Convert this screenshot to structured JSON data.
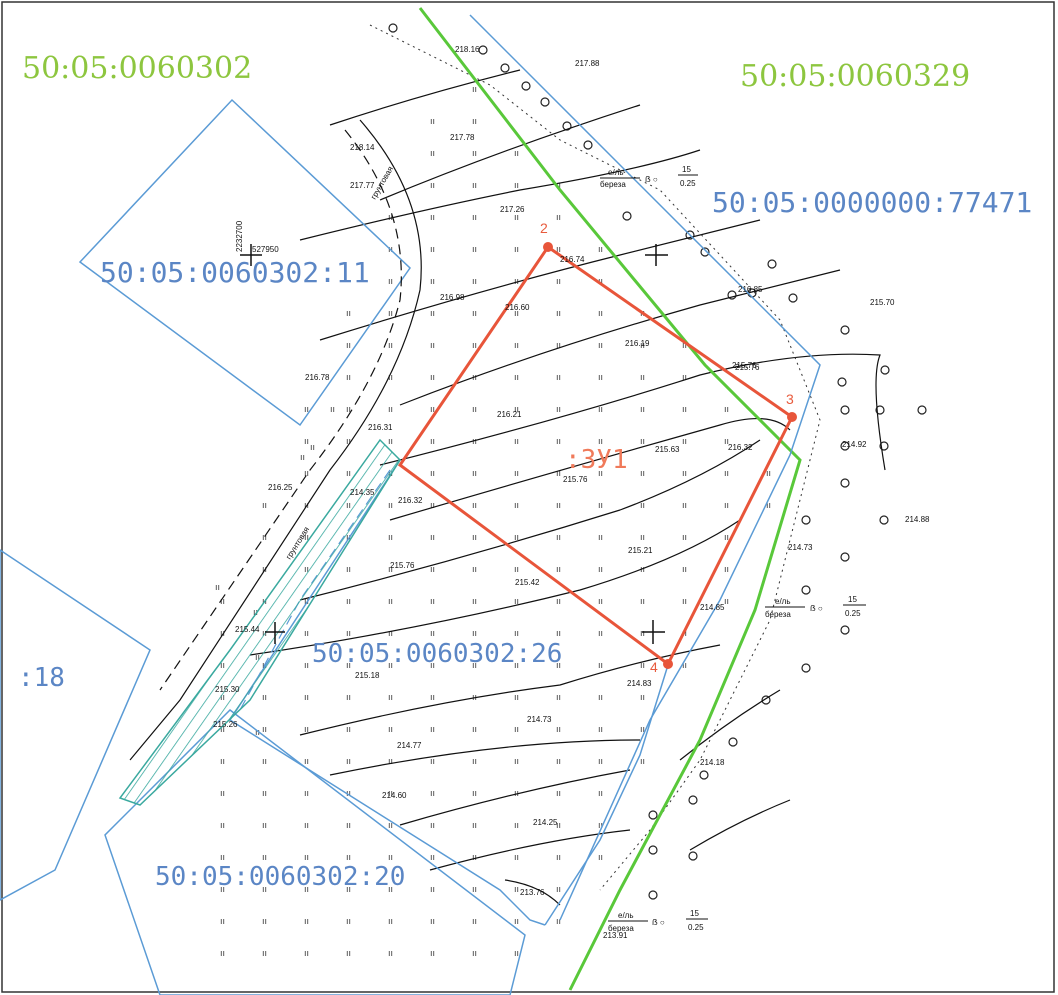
{
  "map": {
    "cadastral_blocks": [
      {
        "id": "block-60302",
        "text": "50:05:0060302"
      },
      {
        "id": "block-60329",
        "text": "50:05:0060329"
      }
    ],
    "parcels": [
      {
        "id": "parcel-77471",
        "text": "50:05:0000000:77471"
      },
      {
        "id": "parcel-11",
        "text": "50:05:0060302:11"
      },
      {
        "id": "parcel-26",
        "text": "50:05:0060302:26"
      },
      {
        "id": "parcel-20",
        "text": "50:05:0060302:20"
      },
      {
        "id": "parcel-18",
        "text": ":18"
      }
    ],
    "new_parcel": {
      "label": ":ЗУ1",
      "points": [
        "2",
        "3",
        "4"
      ]
    },
    "road_labels": [
      "грунтовая",
      "грунтовая"
    ],
    "coordinates": {
      "x": "2232700",
      "y": "527950"
    },
    "tree_notes": [
      {
        "top": "е/ль",
        "species": "береза",
        "num": "15",
        "den": "0.25"
      },
      {
        "top": "е/ль",
        "species": "береза",
        "num": "15",
        "den": "0.25"
      },
      {
        "top": "е/ль",
        "species": "береза",
        "num": "15",
        "den": "0.25"
      }
    ],
    "elevations": [
      "218.16",
      "217.88",
      "217.78",
      "217.77",
      "217.26",
      "216.74",
      "216.85",
      "215.70",
      "216.60",
      "216.19",
      "215.76",
      "216.78",
      "216.21",
      "216.98",
      "215.63",
      "215.76",
      "214.92",
      "216.31",
      "216.25",
      "216.32",
      "215.76",
      "214.88",
      "214.73",
      "215.21",
      "215.42",
      "214.85",
      "215.44",
      "215.18",
      "214.83",
      "215.30",
      "215.26",
      "214.77",
      "214.73",
      "214.60",
      "214.25",
      "214.18",
      "213.76",
      "213.91",
      "218.14",
      "216.32",
      "215.76",
      "214.35"
    ]
  },
  "colors": {
    "block_label": "#8dc63f",
    "parcel_border": "#5b9bd5",
    "new_parcel": "#e8553a",
    "block_border": "#59c83a",
    "hatch": "#3aa99f",
    "contour": "#111111"
  }
}
